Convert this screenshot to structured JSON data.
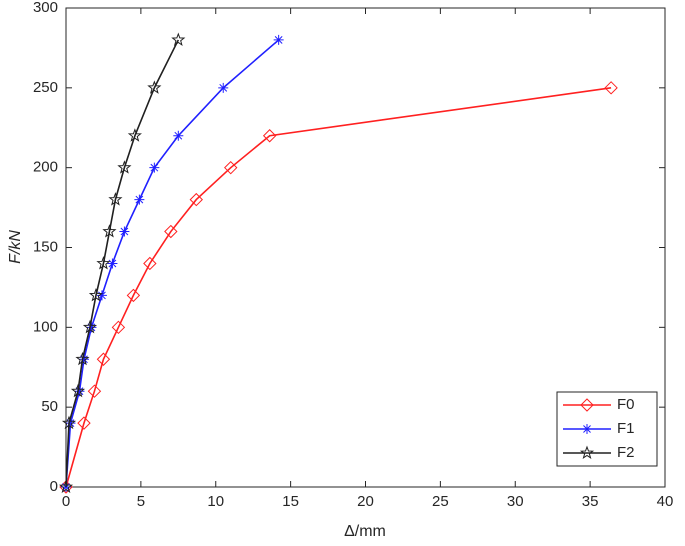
{
  "chart_data": {
    "type": "line",
    "x_label": "Δ/mm",
    "y_label": "F/kN",
    "xlim": [
      0,
      40
    ],
    "xticks": [
      0,
      5,
      10,
      15,
      20,
      25,
      30,
      35,
      40
    ],
    "ylim": [
      0,
      300
    ],
    "yticks": [
      0,
      50,
      100,
      150,
      200,
      250,
      300
    ],
    "grid": false,
    "legend": "lower right",
    "series": [
      {
        "name": "F0",
        "color": "#ff2020",
        "marker": "diamond",
        "x": [
          0,
          1.2,
          1.9,
          2.5,
          3.5,
          4.5,
          5.6,
          7.0,
          8.7,
          11.0,
          13.6,
          36.4
        ],
        "values": [
          0,
          40,
          60,
          80,
          100,
          120,
          140,
          160,
          180,
          200,
          220,
          250
        ]
      },
      {
        "name": "F1",
        "color": "#2020ff",
        "marker": "asterisk",
        "x": [
          0,
          0.3,
          0.9,
          1.2,
          1.7,
          2.4,
          3.1,
          3.9,
          4.9,
          5.9,
          7.5,
          10.5,
          14.2
        ],
        "values": [
          0,
          40,
          60,
          80,
          100,
          120,
          140,
          160,
          180,
          200,
          220,
          250,
          280
        ]
      },
      {
        "name": "F2",
        "color": "#202020",
        "marker": "pentagram",
        "x": [
          0,
          0.2,
          0.8,
          1.1,
          1.6,
          2.0,
          2.5,
          2.9,
          3.3,
          3.9,
          4.6,
          5.9,
          7.5
        ],
        "values": [
          0,
          40,
          60,
          80,
          100,
          120,
          140,
          160,
          180,
          200,
          220,
          250,
          280
        ]
      }
    ]
  }
}
